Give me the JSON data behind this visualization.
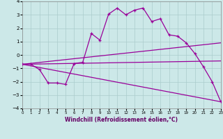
{
  "xlabel": "Windchill (Refroidissement éolien,°C)",
  "xlim": [
    0,
    23
  ],
  "ylim": [
    -4,
    4
  ],
  "xticks": [
    0,
    1,
    2,
    3,
    4,
    5,
    6,
    7,
    8,
    9,
    10,
    11,
    12,
    13,
    14,
    15,
    16,
    17,
    18,
    19,
    20,
    21,
    22,
    23
  ],
  "yticks": [
    -4,
    -3,
    -2,
    -1,
    0,
    1,
    2,
    3,
    4
  ],
  "bg_color": "#cce8e8",
  "grid_color": "#aacccc",
  "line_color": "#990099",
  "line1_x": [
    0,
    1,
    2,
    3,
    4,
    5,
    6,
    7,
    8,
    9,
    10,
    11,
    12,
    13,
    14,
    15,
    16,
    17,
    18,
    19,
    20,
    21,
    22,
    23
  ],
  "line1_y": [
    -0.7,
    -0.7,
    -1.1,
    -2.1,
    -2.1,
    -2.2,
    -0.65,
    -0.55,
    1.6,
    1.1,
    3.05,
    3.5,
    3.0,
    3.35,
    3.5,
    2.5,
    2.7,
    1.5,
    1.4,
    0.9,
    0.1,
    -0.9,
    -2.0,
    -3.5
  ],
  "line3_x": [
    0,
    23
  ],
  "line3_y": [
    -0.7,
    0.9
  ],
  "line4_x": [
    0,
    23
  ],
  "line4_y": [
    -0.7,
    -0.45
  ],
  "line5_x": [
    0,
    23
  ],
  "line5_y": [
    -0.7,
    -3.5
  ]
}
